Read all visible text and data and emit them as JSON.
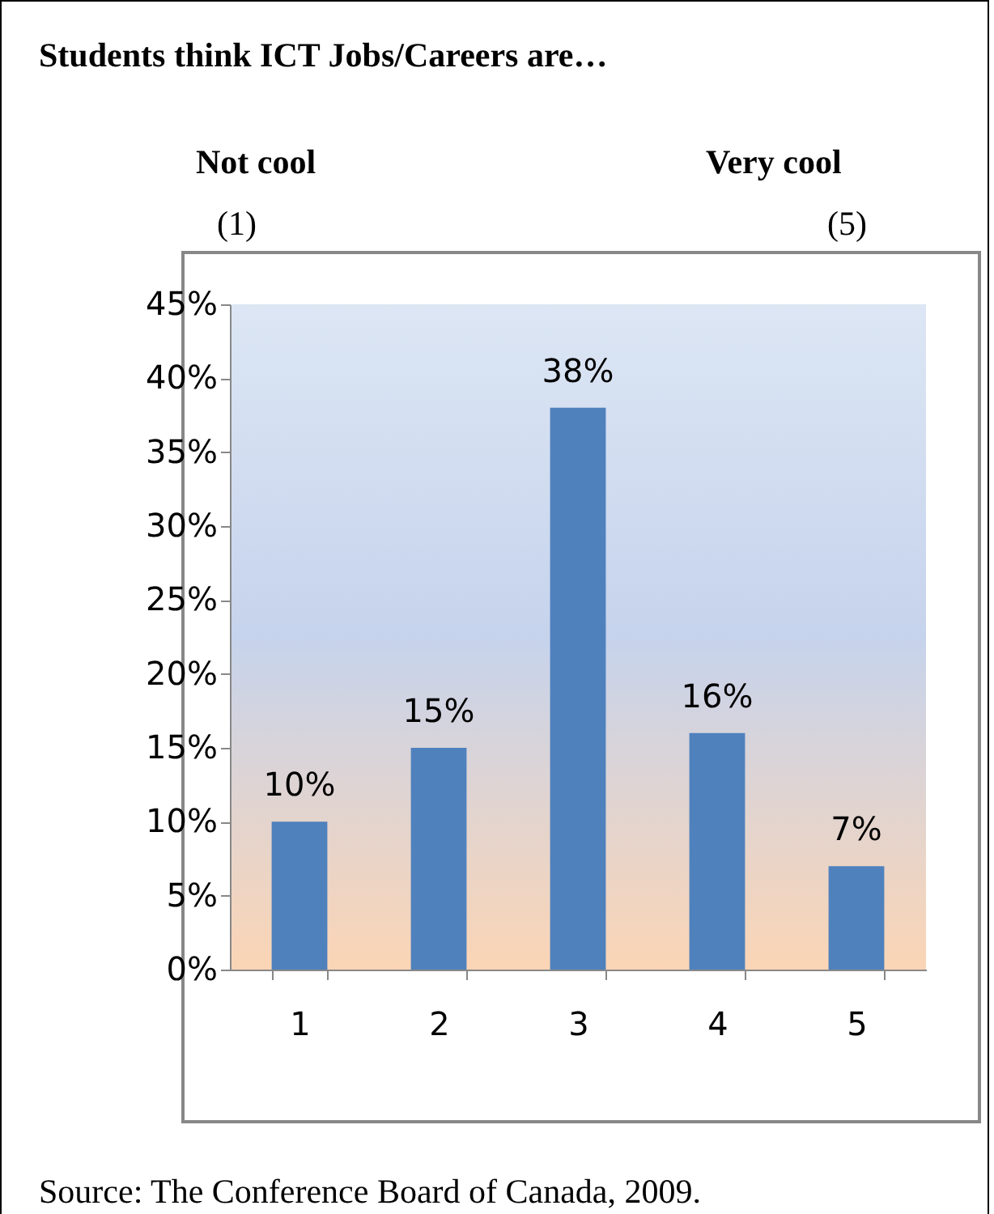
{
  "chart_data": {
    "type": "bar",
    "title": "Students think ICT Jobs/Careers are…",
    "annotations": [
      "Not cool",
      "(1)",
      "Very cool",
      "(5)",
      "Source: The Conference Board of Canada, 2009."
    ],
    "categories": [
      "1",
      "2",
      "3",
      "4",
      "5"
    ],
    "values": [
      10,
      15,
      38,
      16,
      7
    ],
    "color": "#4f81bd",
    "value_labels": [
      "10%",
      "15%",
      "38%",
      "16%",
      "7%"
    ],
    "ylim": [
      0,
      45
    ],
    "yticks": [
      {
        "value": 0,
        "label": "0%"
      },
      {
        "value": 5,
        "label": "5%"
      },
      {
        "value": 10,
        "label": "10%"
      },
      {
        "value": 15,
        "label": "15%"
      },
      {
        "value": 20,
        "label": "20%"
      },
      {
        "value": 25,
        "label": "25%"
      },
      {
        "value": 30,
        "label": "30%"
      },
      {
        "value": 35,
        "label": "35%"
      },
      {
        "value": 40,
        "label": "40%"
      },
      {
        "value": 45,
        "label": "45%"
      }
    ],
    "grid": false
  }
}
